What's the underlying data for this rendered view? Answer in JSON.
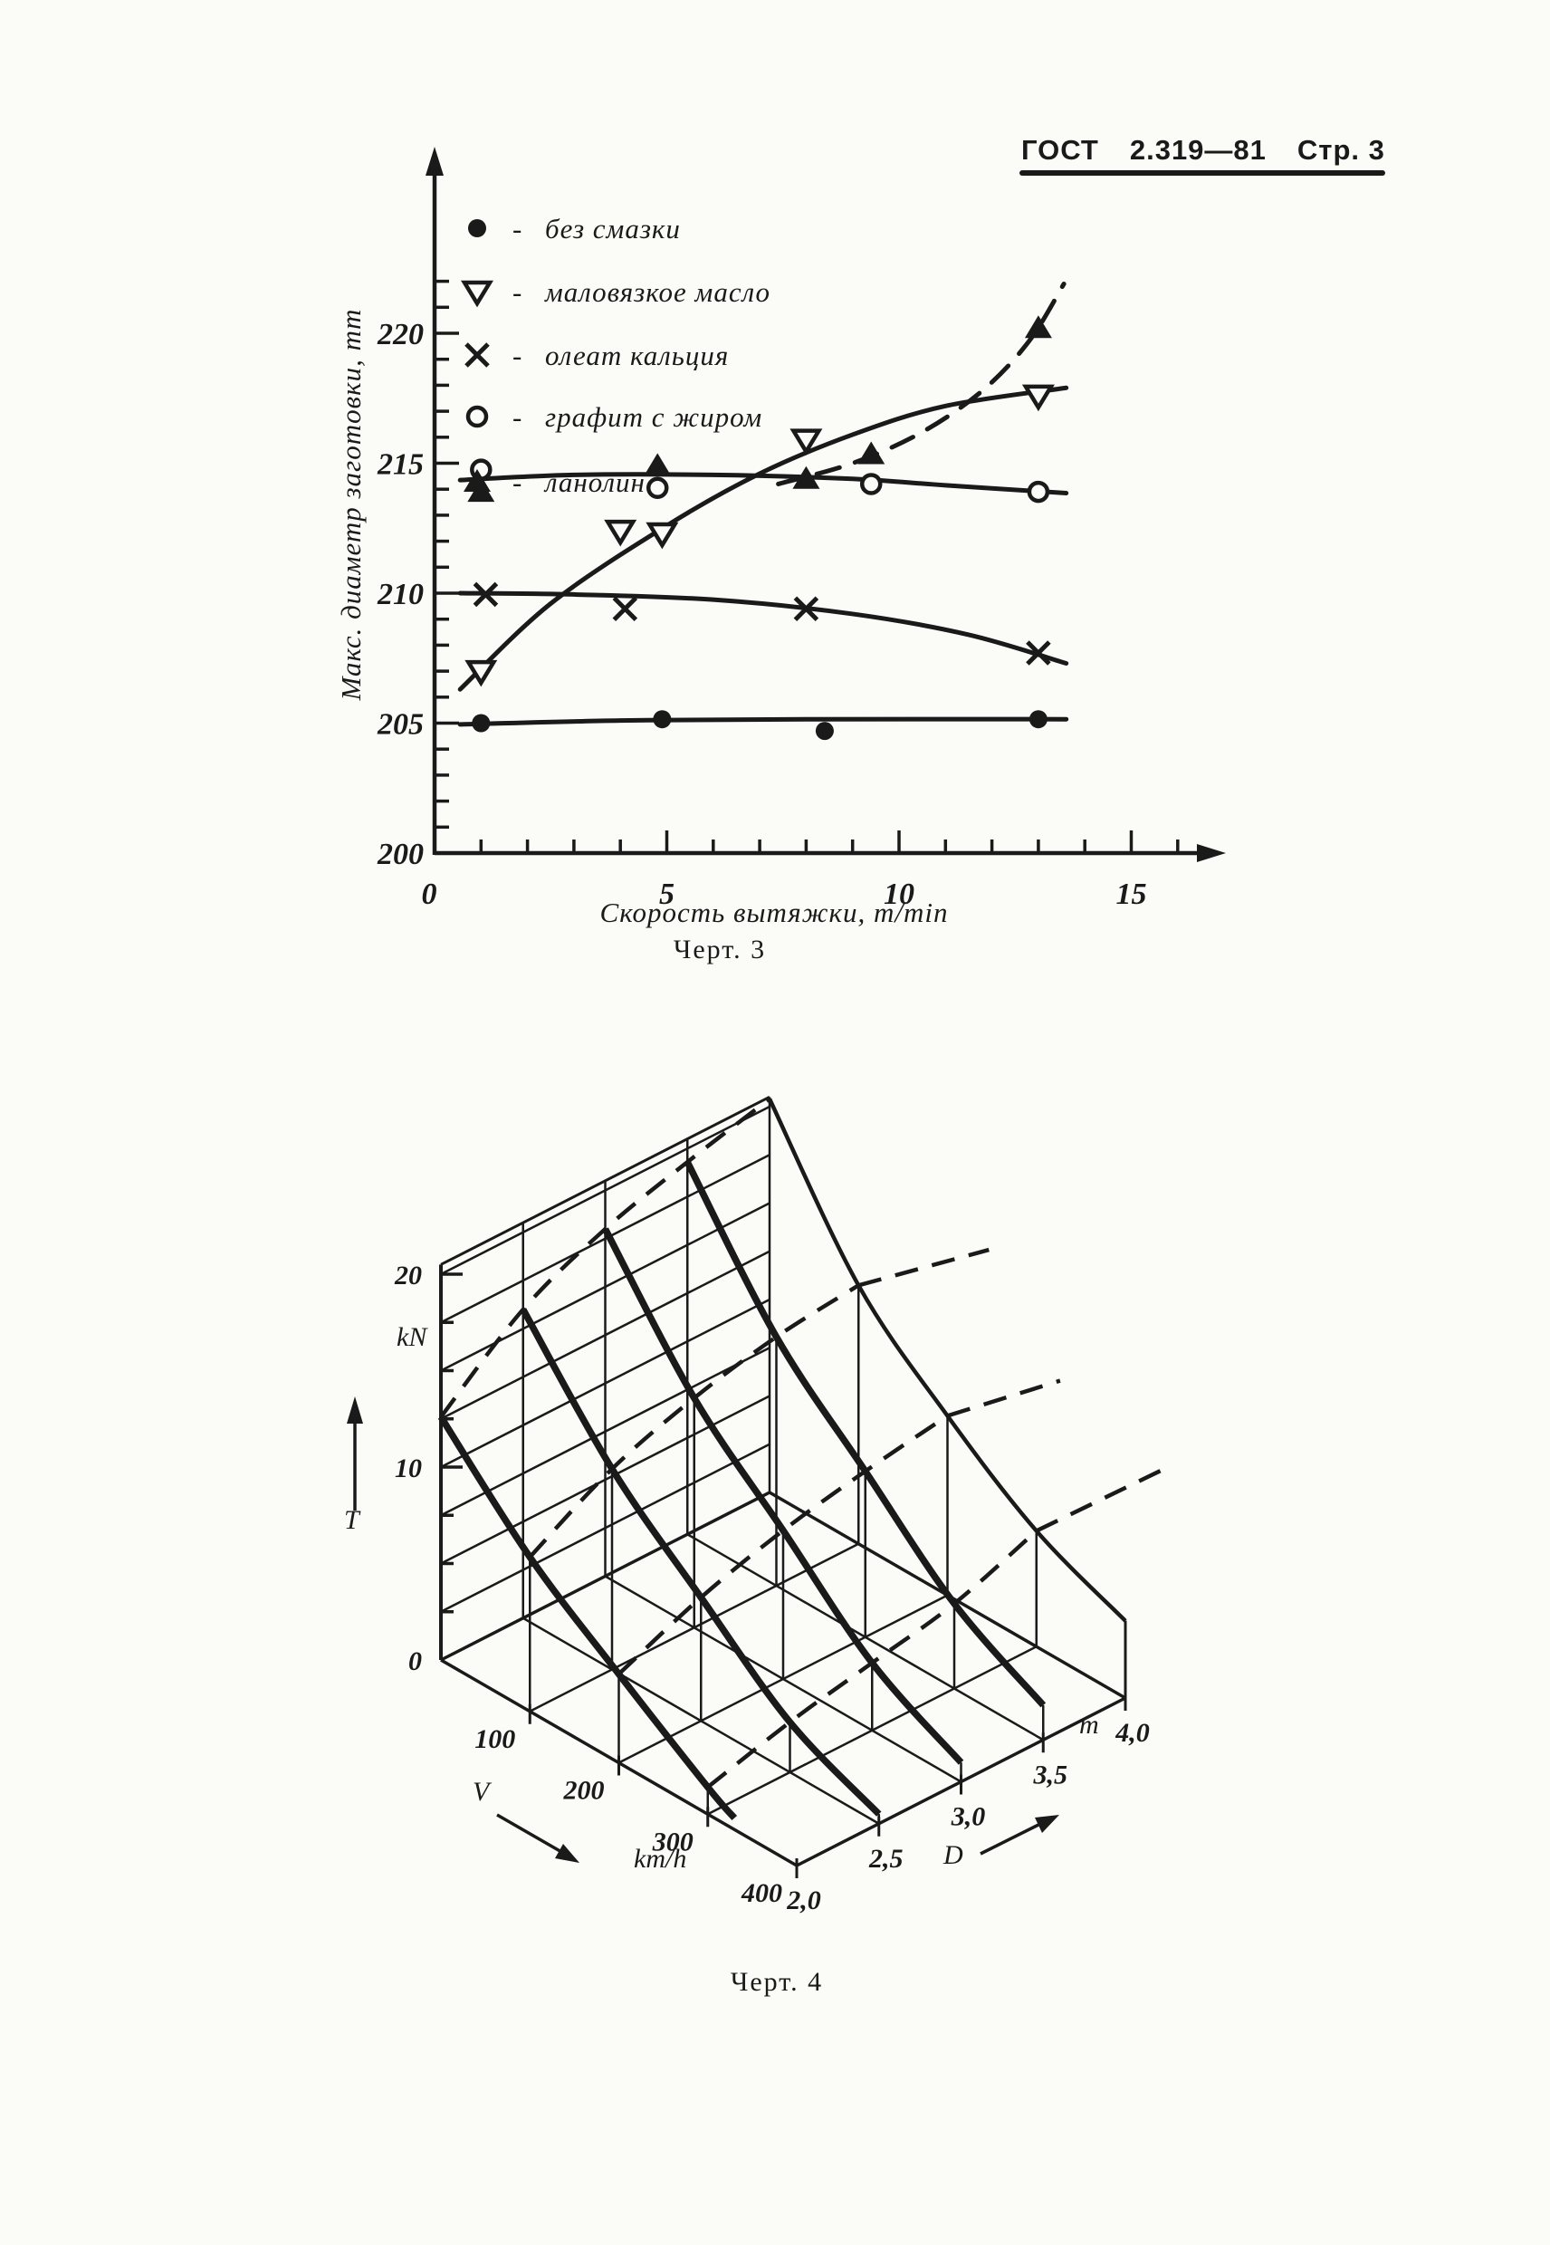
{
  "ink": "#1a1a1a",
  "header": {
    "doc": "ГОСТ",
    "number": "2.319—81",
    "page": "Стр. 3"
  },
  "chart_data": {
    "chart3": {
      "type": "line",
      "caption": "Черт. 3",
      "xlabel": "Скорость вытяжки, m/min",
      "ylabel": "Макс. диаметр заготовки, mm",
      "xlim": [
        0,
        16.5
      ],
      "ylim": [
        200,
        223
      ],
      "xticks": [
        0,
        5,
        10,
        15
      ],
      "yticks": [
        200,
        205,
        210,
        215,
        220
      ],
      "legend_separator": "-",
      "legend_note": "marker meanings for lubricant types",
      "series": [
        {
          "name": "без смазки",
          "marker": "dot-filled",
          "line": "solid",
          "points": [
            [
              1,
              205
            ],
            [
              4.9,
              205.15
            ],
            [
              8.4,
              204.7
            ],
            [
              13,
              205.15
            ]
          ],
          "trend": [
            [
              0.55,
              204.95
            ],
            [
              4,
              205.1
            ],
            [
              8,
              205.15
            ],
            [
              13.6,
              205.15
            ]
          ]
        },
        {
          "name": "маловязкое масло",
          "marker": "triangle-down-open",
          "line": "solid",
          "points": [
            [
              1,
              207
            ],
            [
              4,
              212.4
            ],
            [
              4.9,
              212.3
            ],
            [
              8,
              215.9
            ],
            [
              13,
              217.6
            ]
          ],
          "trend": [
            [
              0.55,
              206.3
            ],
            [
              2.5,
              209.6
            ],
            [
              5,
              212.6
            ],
            [
              7,
              214.6
            ],
            [
              9,
              216.1
            ],
            [
              11,
              217.2
            ],
            [
              13.6,
              217.9
            ]
          ]
        },
        {
          "name": "олеат кальция",
          "marker": "cross",
          "line": "solid",
          "points": [
            [
              1.1,
              209.95
            ],
            [
              4.1,
              209.4
            ],
            [
              8,
              209.4
            ],
            [
              13,
              207.7
            ]
          ],
          "trend": [
            [
              0.55,
              210.0
            ],
            [
              3,
              209.95
            ],
            [
              6,
              209.75
            ],
            [
              9,
              209.2
            ],
            [
              11.5,
              208.4
            ],
            [
              13.6,
              207.3
            ]
          ]
        },
        {
          "name": "графит с жиром",
          "marker": "circle-open",
          "line": "solid",
          "points": [
            [
              1,
              214.75
            ],
            [
              4.8,
              214.05
            ],
            [
              9.4,
              214.2
            ],
            [
              13,
              213.9
            ]
          ],
          "trend": [
            [
              0.55,
              214.35
            ],
            [
              3,
              214.55
            ],
            [
              6,
              214.55
            ],
            [
              9,
              214.4
            ],
            [
              11,
              214.15
            ],
            [
              13.6,
              213.85
            ]
          ]
        },
        {
          "name": "ланолин",
          "marker": "triangle-up-filled",
          "line": "dashed",
          "points": [
            [
              1,
              213.9
            ],
            [
              4.8,
              214.9
            ],
            [
              8,
              214.4
            ],
            [
              9.4,
              215.35
            ],
            [
              13,
              220.2
            ]
          ],
          "trend": [
            [
              7.4,
              214.2
            ],
            [
              9,
              215.0
            ],
            [
              10.5,
              216.2
            ],
            [
              11.8,
              217.8
            ],
            [
              12.8,
              219.7
            ],
            [
              13.55,
              221.9
            ]
          ]
        }
      ]
    },
    "chart4": {
      "type": "surface-wireframe-3d",
      "caption": "Черт. 4",
      "t_axis": {
        "label": "T",
        "unit": "kN",
        "tick_labels": [
          0,
          10,
          20
        ],
        "minor_step": 2.5,
        "top": 20.5
      },
      "v_axis": {
        "label": "V",
        "unit": "km/h",
        "ticks": [
          100,
          200,
          300,
          400
        ],
        "max": 400
      },
      "d_axis": {
        "label": "D",
        "unit": "m",
        "tick_labels": [
          "2,0",
          "2,5",
          "3,0",
          "3,5",
          "4,0"
        ],
        "values": [
          2.0,
          2.5,
          3.0,
          3.5,
          4.0
        ]
      },
      "solid_sections_constD": [
        {
          "d": 2.0,
          "width": "thick",
          "tv": [
            [
              0,
              12.6
            ],
            [
              100,
              8.0
            ],
            [
              200,
              4.6
            ],
            [
              300,
              1.4
            ],
            [
              330,
              0.6
            ]
          ]
        },
        {
          "d": 2.5,
          "width": "thick",
          "tv": [
            [
              0,
              16.0
            ],
            [
              100,
              10.4
            ],
            [
              200,
              6.4
            ],
            [
              300,
              2.6
            ],
            [
              400,
              0.5
            ]
          ]
        },
        {
          "d": 3.0,
          "width": "thick",
          "tv": [
            [
              0,
              18.0
            ],
            [
              100,
              11.9
            ],
            [
              200,
              7.7
            ],
            [
              300,
              3.5
            ],
            [
              400,
              1.0
            ]
          ]
        },
        {
          "d": 3.5,
          "width": "thick",
          "tv": [
            [
              0,
              19.3
            ],
            [
              100,
              12.9
            ],
            [
              200,
              8.6
            ],
            [
              300,
              4.4
            ],
            [
              400,
              1.8
            ]
          ]
        },
        {
          "d": 4.0,
          "width": "medium",
          "tv": [
            [
              0,
              20.4
            ],
            [
              100,
              13.4
            ],
            [
              200,
              9.3
            ],
            [
              300,
              6.0
            ],
            [
              400,
              4.0
            ]
          ]
        }
      ],
      "dashed_sections_constV": [
        {
          "v": 0,
          "dt": [
            [
              2.0,
              12.6
            ],
            [
              2.5,
              16.0
            ],
            [
              3.0,
              18.0
            ],
            [
              3.5,
              19.3
            ],
            [
              4.0,
              20.4
            ]
          ],
          "ext": 0
        },
        {
          "v": 100,
          "dt": [
            [
              2.0,
              8.0
            ],
            [
              2.5,
              10.4
            ],
            [
              3.0,
              11.9
            ],
            [
              3.5,
              12.9
            ],
            [
              4.0,
              13.4
            ]
          ],
          "ext": 170
        },
        {
          "v": 200,
          "dt": [
            [
              2.0,
              4.6
            ],
            [
              2.5,
              6.4
            ],
            [
              3.0,
              7.7
            ],
            [
              3.5,
              8.6
            ],
            [
              4.0,
              9.3
            ]
          ],
          "ext": 150
        },
        {
          "v": 300,
          "dt": [
            [
              2.0,
              1.4
            ],
            [
              2.5,
              2.6
            ],
            [
              3.0,
              3.5
            ],
            [
              3.5,
              4.4
            ],
            [
              4.0,
              6.0
            ]
          ],
          "ext": 185
        }
      ]
    }
  }
}
